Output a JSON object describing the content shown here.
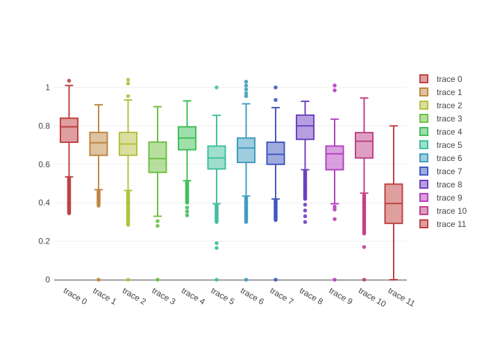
{
  "figure": {
    "background": "#ffffff",
    "axis_text_color": "#444444",
    "grid_color": "#eeeeee",
    "zero_line_color": "#999999"
  },
  "chart_data": {
    "type": "box",
    "title": "",
    "xlabel": "",
    "ylabel": "",
    "grid": true,
    "legend_position": "right",
    "yaxis": {
      "range": [
        0,
        1.05
      ],
      "ticks": [
        {
          "value": 0,
          "label": "0"
        },
        {
          "value": 0.2,
          "label": "0.2"
        },
        {
          "value": 0.4,
          "label": "0.4"
        },
        {
          "value": 0.6,
          "label": "0.6"
        },
        {
          "value": 0.8,
          "label": "0.8"
        },
        {
          "value": 1,
          "label": "1"
        }
      ]
    },
    "categories": [
      "trace 0",
      "trace 1",
      "trace 2",
      "trace 3",
      "trace 4",
      "trace 5",
      "trace 6",
      "trace 7",
      "trace 8",
      "trace 9",
      "trace 10",
      "trace 11"
    ],
    "series": [
      {
        "name": "trace 0",
        "color": "#bf4040",
        "whisker_low": 0.535,
        "q1": 0.715,
        "median": 0.795,
        "q3": 0.84,
        "whisker_high": 1.01,
        "outliers": [
          1.035
        ],
        "outlier_band": {
          "min": 0.345,
          "max": 0.53,
          "count": 36
        }
      },
      {
        "name": "trace 1",
        "color": "#bf8540",
        "whisker_low": 0.468,
        "q1": 0.647,
        "median": 0.712,
        "q3": 0.766,
        "whisker_high": 0.91,
        "outliers": [
          0
        ],
        "outlier_band": {
          "min": 0.385,
          "max": 0.462,
          "count": 16
        }
      },
      {
        "name": "trace 2",
        "color": "#b4bf40",
        "whisker_low": 0.464,
        "q1": 0.647,
        "median": 0.706,
        "q3": 0.766,
        "whisker_high": 0.935,
        "outliers": [
          1.04,
          1.02,
          0.955,
          0
        ],
        "outlier_band": {
          "min": 0.285,
          "max": 0.458,
          "count": 32
        }
      },
      {
        "name": "trace 3",
        "color": "#6ebf40",
        "whisker_low": 0.33,
        "q1": 0.558,
        "median": 0.63,
        "q3": 0.716,
        "whisker_high": 0.9,
        "outliers": [
          0.305,
          0.28,
          0
        ],
        "outlier_band": null
      },
      {
        "name": "trace 4",
        "color": "#40bf57",
        "whisker_low": 0.515,
        "q1": 0.676,
        "median": 0.737,
        "q3": 0.795,
        "whisker_high": 0.93,
        "outliers": [
          0.375,
          0.355,
          0.335
        ],
        "outlier_band": {
          "min": 0.4,
          "max": 0.51,
          "count": 20
        }
      },
      {
        "name": "trace 5",
        "color": "#40bf9c",
        "whisker_low": 0.395,
        "q1": 0.576,
        "median": 0.633,
        "q3": 0.695,
        "whisker_high": 0.855,
        "outliers": [
          1.0,
          0.19,
          0.165,
          0
        ],
        "outlier_band": {
          "min": 0.3,
          "max": 0.39,
          "count": 17
        }
      },
      {
        "name": "trace 6",
        "color": "#409cbf",
        "whisker_low": 0.435,
        "q1": 0.61,
        "median": 0.685,
        "q3": 0.737,
        "whisker_high": 0.915,
        "outliers": [
          1.03,
          1.01,
          0.99,
          0.97,
          0.955,
          0
        ],
        "outlier_band": {
          "min": 0.3,
          "max": 0.428,
          "count": 24
        }
      },
      {
        "name": "trace 7",
        "color": "#4057bf",
        "whisker_low": 0.42,
        "q1": 0.6,
        "median": 0.652,
        "q3": 0.715,
        "whisker_high": 0.895,
        "outliers": [
          1.0,
          0.935,
          0
        ],
        "outlier_band": {
          "min": 0.31,
          "max": 0.414,
          "count": 19
        }
      },
      {
        "name": "trace 8",
        "color": "#6e40bf",
        "whisker_low": 0.572,
        "q1": 0.73,
        "median": 0.8,
        "q3": 0.856,
        "whisker_high": 0.928,
        "outliers": [
          0.39,
          0.36,
          0.33,
          0.3
        ],
        "outlier_band": {
          "min": 0.42,
          "max": 0.565,
          "count": 27
        }
      },
      {
        "name": "trace 9",
        "color": "#b440bf",
        "whisker_low": 0.395,
        "q1": 0.572,
        "median": 0.655,
        "q3": 0.695,
        "whisker_high": 0.835,
        "outliers": [
          1.01,
          0.985,
          0.38,
          0.365,
          0.315,
          0
        ],
        "outlier_band": null
      },
      {
        "name": "trace 10",
        "color": "#bf4085",
        "whisker_low": 0.45,
        "q1": 0.633,
        "median": 0.72,
        "q3": 0.765,
        "whisker_high": 0.945,
        "outliers": [
          0.17,
          0
        ],
        "outlier_band": {
          "min": 0.24,
          "max": 0.44,
          "count": 28
        }
      },
      {
        "name": "trace 11",
        "color": "#bf4040",
        "whisker_low": 0.0,
        "q1": 0.293,
        "median": 0.396,
        "q3": 0.497,
        "whisker_high": 0.8,
        "outliers": [],
        "outlier_band": null
      }
    ]
  }
}
